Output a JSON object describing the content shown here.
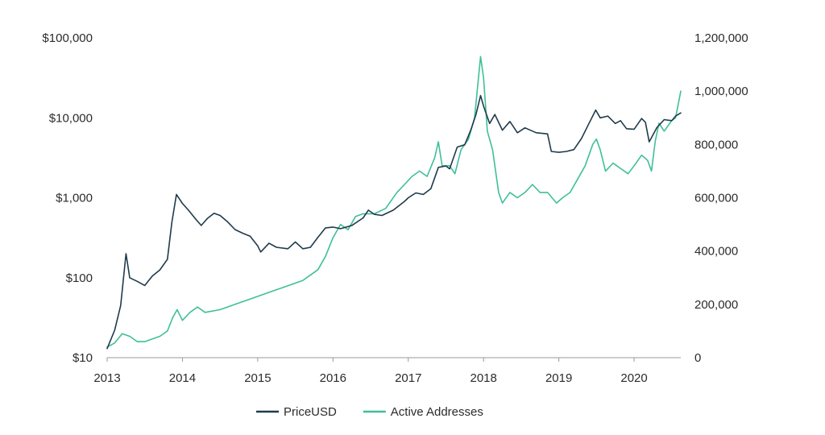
{
  "chart_data": {
    "type": "line",
    "title": "",
    "xlabel": "",
    "ylabel_left": "",
    "ylabel_right": "",
    "x_ticks": [
      "2013",
      "2014",
      "2015",
      "2016",
      "2017",
      "2018",
      "2019",
      "2020"
    ],
    "x_range": [
      2013.0,
      2020.62
    ],
    "y_left": {
      "scale": "log",
      "range": [
        10,
        100000
      ],
      "ticks": [
        10,
        100,
        1000,
        10000,
        100000
      ],
      "tick_labels": [
        "$10",
        "$100",
        "$1,000",
        "$10,000",
        "$100,000"
      ]
    },
    "y_right": {
      "scale": "linear",
      "range": [
        0,
        1200000
      ],
      "ticks": [
        0,
        200000,
        400000,
        600000,
        800000,
        1000000,
        1200000
      ],
      "tick_labels": [
        "0",
        "200,000",
        "400,000",
        "600,000",
        "800,000",
        "1,000,000",
        "1,200,000"
      ]
    },
    "grid": false,
    "legend_position": "bottom",
    "series": [
      {
        "name": "PriceUSD",
        "axis": "left",
        "color": "#1f3b4d",
        "points": [
          [
            2013.0,
            13
          ],
          [
            2013.1,
            22
          ],
          [
            2013.18,
            45
          ],
          [
            2013.25,
            200
          ],
          [
            2013.3,
            100
          ],
          [
            2013.4,
            90
          ],
          [
            2013.5,
            80
          ],
          [
            2013.6,
            105
          ],
          [
            2013.7,
            125
          ],
          [
            2013.8,
            170
          ],
          [
            2013.86,
            500
          ],
          [
            2013.92,
            1100
          ],
          [
            2014.0,
            850
          ],
          [
            2014.08,
            700
          ],
          [
            2014.17,
            550
          ],
          [
            2014.25,
            450
          ],
          [
            2014.33,
            550
          ],
          [
            2014.42,
            640
          ],
          [
            2014.5,
            600
          ],
          [
            2014.6,
            500
          ],
          [
            2014.7,
            400
          ],
          [
            2014.8,
            360
          ],
          [
            2014.9,
            330
          ],
          [
            2015.0,
            250
          ],
          [
            2015.04,
            210
          ],
          [
            2015.15,
            270
          ],
          [
            2015.25,
            240
          ],
          [
            2015.4,
            230
          ],
          [
            2015.5,
            280
          ],
          [
            2015.6,
            230
          ],
          [
            2015.7,
            240
          ],
          [
            2015.8,
            320
          ],
          [
            2015.9,
            420
          ],
          [
            2016.0,
            430
          ],
          [
            2016.1,
            410
          ],
          [
            2016.25,
            450
          ],
          [
            2016.4,
            560
          ],
          [
            2016.47,
            700
          ],
          [
            2016.55,
            620
          ],
          [
            2016.65,
            600
          ],
          [
            2016.8,
            700
          ],
          [
            2016.95,
            900
          ],
          [
            2017.0,
            1000
          ],
          [
            2017.1,
            1150
          ],
          [
            2017.2,
            1100
          ],
          [
            2017.3,
            1300
          ],
          [
            2017.4,
            2400
          ],
          [
            2017.5,
            2500
          ],
          [
            2017.55,
            2300
          ],
          [
            2017.65,
            4300
          ],
          [
            2017.75,
            4600
          ],
          [
            2017.83,
            7000
          ],
          [
            2017.9,
            11000
          ],
          [
            2017.96,
            19000
          ],
          [
            2018.0,
            14000
          ],
          [
            2018.08,
            8500
          ],
          [
            2018.15,
            11000
          ],
          [
            2018.25,
            7000
          ],
          [
            2018.35,
            9000
          ],
          [
            2018.45,
            6500
          ],
          [
            2018.55,
            7500
          ],
          [
            2018.7,
            6500
          ],
          [
            2018.85,
            6300
          ],
          [
            2018.9,
            3800
          ],
          [
            2019.0,
            3700
          ],
          [
            2019.1,
            3800
          ],
          [
            2019.2,
            4000
          ],
          [
            2019.3,
            5500
          ],
          [
            2019.4,
            8500
          ],
          [
            2019.49,
            12500
          ],
          [
            2019.55,
            10000
          ],
          [
            2019.65,
            10500
          ],
          [
            2019.75,
            8500
          ],
          [
            2019.82,
            9200
          ],
          [
            2019.9,
            7300
          ],
          [
            2020.0,
            7200
          ],
          [
            2020.1,
            9800
          ],
          [
            2020.15,
            8800
          ],
          [
            2020.2,
            5000
          ],
          [
            2020.3,
            7500
          ],
          [
            2020.4,
            9500
          ],
          [
            2020.5,
            9200
          ],
          [
            2020.55,
            10500
          ],
          [
            2020.62,
            11500
          ]
        ]
      },
      {
        "name": "Active Addresses",
        "axis": "right",
        "color": "#3fbf99",
        "points": [
          [
            2013.0,
            40000
          ],
          [
            2013.1,
            55000
          ],
          [
            2013.2,
            90000
          ],
          [
            2013.3,
            80000
          ],
          [
            2013.4,
            60000
          ],
          [
            2013.5,
            60000
          ],
          [
            2013.6,
            70000
          ],
          [
            2013.7,
            80000
          ],
          [
            2013.8,
            100000
          ],
          [
            2013.87,
            150000
          ],
          [
            2013.93,
            180000
          ],
          [
            2014.0,
            140000
          ],
          [
            2014.1,
            170000
          ],
          [
            2014.2,
            190000
          ],
          [
            2014.3,
            170000
          ],
          [
            2014.5,
            180000
          ],
          [
            2014.7,
            200000
          ],
          [
            2014.9,
            220000
          ],
          [
            2015.0,
            230000
          ],
          [
            2015.2,
            250000
          ],
          [
            2015.4,
            270000
          ],
          [
            2015.6,
            290000
          ],
          [
            2015.8,
            330000
          ],
          [
            2015.9,
            380000
          ],
          [
            2016.0,
            450000
          ],
          [
            2016.1,
            500000
          ],
          [
            2016.2,
            480000
          ],
          [
            2016.3,
            530000
          ],
          [
            2016.4,
            540000
          ],
          [
            2016.55,
            540000
          ],
          [
            2016.7,
            560000
          ],
          [
            2016.85,
            620000
          ],
          [
            2016.95,
            650000
          ],
          [
            2017.05,
            680000
          ],
          [
            2017.15,
            700000
          ],
          [
            2017.25,
            680000
          ],
          [
            2017.35,
            750000
          ],
          [
            2017.4,
            810000
          ],
          [
            2017.45,
            720000
          ],
          [
            2017.55,
            720000
          ],
          [
            2017.62,
            690000
          ],
          [
            2017.7,
            780000
          ],
          [
            2017.8,
            820000
          ],
          [
            2017.88,
            900000
          ],
          [
            2017.96,
            1130000
          ],
          [
            2018.0,
            1050000
          ],
          [
            2018.05,
            850000
          ],
          [
            2018.12,
            780000
          ],
          [
            2018.2,
            620000
          ],
          [
            2018.25,
            580000
          ],
          [
            2018.35,
            620000
          ],
          [
            2018.45,
            600000
          ],
          [
            2018.55,
            620000
          ],
          [
            2018.65,
            650000
          ],
          [
            2018.75,
            620000
          ],
          [
            2018.85,
            620000
          ],
          [
            2018.97,
            580000
          ],
          [
            2019.05,
            600000
          ],
          [
            2019.15,
            620000
          ],
          [
            2019.25,
            670000
          ],
          [
            2019.35,
            720000
          ],
          [
            2019.45,
            800000
          ],
          [
            2019.5,
            820000
          ],
          [
            2019.55,
            780000
          ],
          [
            2019.62,
            700000
          ],
          [
            2019.72,
            730000
          ],
          [
            2019.82,
            710000
          ],
          [
            2019.92,
            690000
          ],
          [
            2020.0,
            720000
          ],
          [
            2020.1,
            760000
          ],
          [
            2020.18,
            740000
          ],
          [
            2020.23,
            700000
          ],
          [
            2020.28,
            810000
          ],
          [
            2020.33,
            880000
          ],
          [
            2020.4,
            850000
          ],
          [
            2020.5,
            890000
          ],
          [
            2020.55,
            900000
          ],
          [
            2020.62,
            1000000
          ]
        ]
      }
    ]
  }
}
